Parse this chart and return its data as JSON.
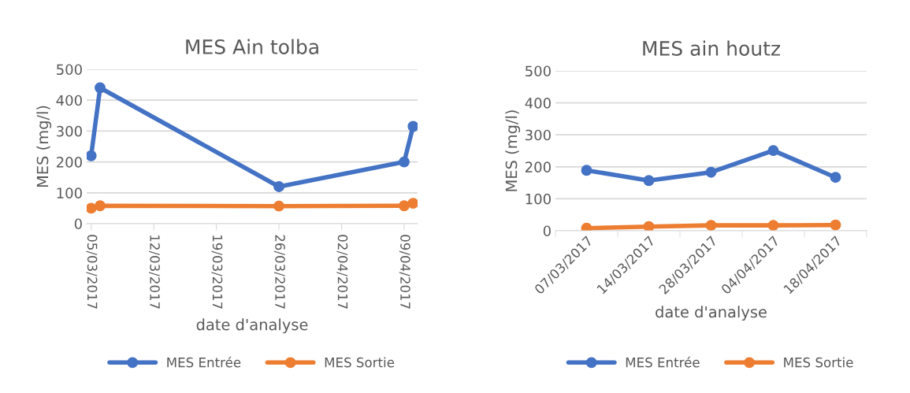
{
  "chart_data": [
    {
      "type": "line",
      "title": "MES Ain tolba",
      "xlabel": "date d'analyse",
      "ylabel": "MES (mg/l)",
      "x": [
        "2017-03-05",
        "2017-03-06",
        "2017-03-26",
        "2017-04-09",
        "2017-04-10"
      ],
      "series": [
        {
          "name": "MES Entrée",
          "color": "#4472c4",
          "values": [
            220,
            440,
            120,
            200,
            315
          ]
        },
        {
          "name": "MES Sortie",
          "color": "#ed7d31",
          "values": [
            50,
            58,
            57,
            58,
            66
          ]
        }
      ],
      "xlim": [
        "2017-03-04T12:00",
        "2017-04-10T12:00"
      ],
      "xticks": [
        {
          "value": "2017-03-05",
          "label": "05/03/2017"
        },
        {
          "value": "2017-03-12",
          "label": "12/03/2017"
        },
        {
          "value": "2017-03-19",
          "label": "19/03/2017"
        },
        {
          "value": "2017-03-26",
          "label": "26/03/2017"
        },
        {
          "value": "2017-04-02",
          "label": "02/04/2017"
        },
        {
          "value": "2017-04-09",
          "label": "09/04/2017"
        }
      ],
      "ylim": [
        0,
        500
      ],
      "yticks": [
        0,
        100,
        200,
        300,
        400,
        500
      ],
      "grid": "y",
      "legend": "bottom",
      "marker": "circle",
      "line_style": "solid"
    },
    {
      "type": "line",
      "title": "MES ain houtz",
      "xlabel": "date d'analyse",
      "ylabel": "MES (mg/l)",
      "categories": [
        "07/03/2017",
        "14/03/2017",
        "28/03/2017",
        "04/04/2017",
        "18/04/2017"
      ],
      "series": [
        {
          "name": "MES Entrée",
          "color": "#4472c4",
          "values": [
            189,
            157,
            183,
            251,
            167
          ]
        },
        {
          "name": "MES Sortie",
          "color": "#ed7d31",
          "values": [
            8,
            13,
            17,
            17,
            18
          ]
        }
      ],
      "ylim": [
        0,
        500
      ],
      "yticks": [
        0,
        100,
        200,
        300,
        400,
        500
      ],
      "grid": "y",
      "legend": "bottom",
      "marker": "circle",
      "line_style": "solid"
    }
  ]
}
